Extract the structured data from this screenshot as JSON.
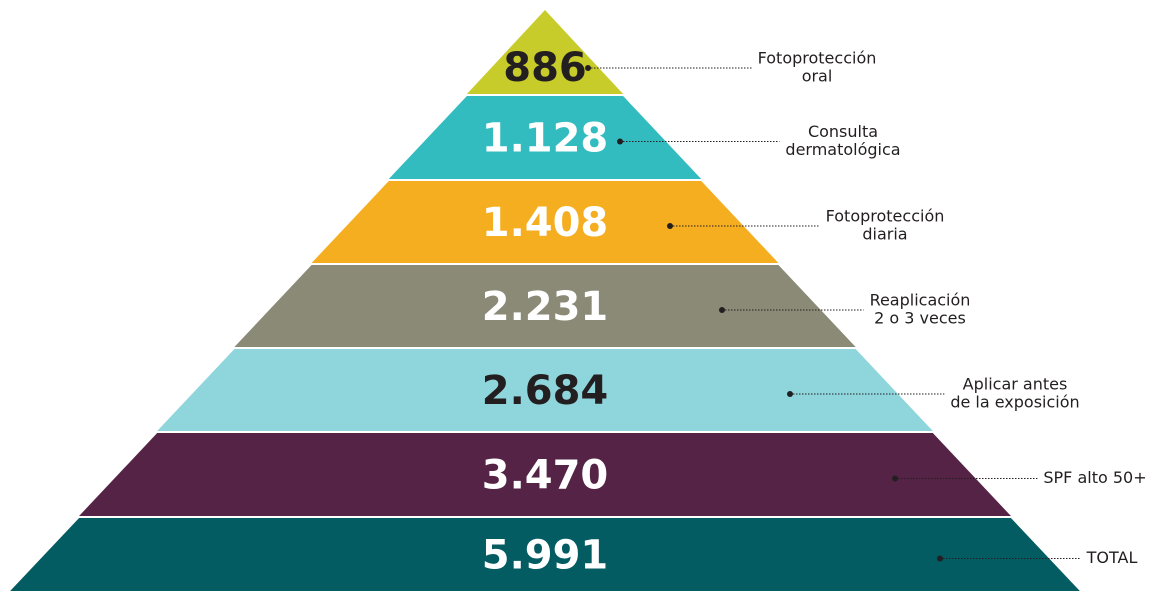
{
  "chart_data": {
    "type": "pyramid",
    "categories": [
      [
        "Fotoprotección",
        "oral"
      ],
      [
        "Consulta",
        "dermatológica"
      ],
      [
        "Fotoprotección",
        "diaria"
      ],
      [
        "Reaplicación",
        "2 o 3 veces"
      ],
      [
        "Aplicar antes",
        "de la exposición"
      ],
      [
        "SPF alto 50+"
      ],
      [
        "TOTAL"
      ]
    ],
    "values": [
      886,
      1128,
      1408,
      2231,
      2684,
      3470,
      5991
    ],
    "value_labels": [
      "886",
      "1.128",
      "1.408",
      "2.231",
      "2.684",
      "3.470",
      "5.991"
    ],
    "colors": [
      "#c8cc2a",
      "#33bcc0",
      "#f5ae1f",
      "#8a8a76",
      "#8ed5dc",
      "#542346",
      "#045c63"
    ]
  }
}
